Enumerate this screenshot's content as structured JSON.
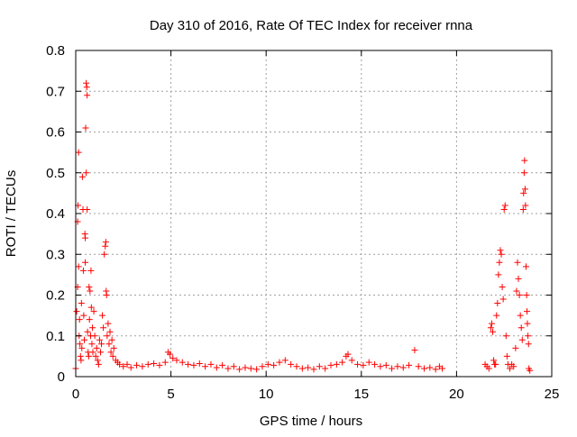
{
  "chart_data": {
    "type": "scatter",
    "title": "Day 310 of 2016, Rate Of TEC Index for receiver rnna",
    "xlabel": "GPS time / hours",
    "ylabel": "ROTI / TECUs",
    "xlim": [
      0,
      25
    ],
    "ylim": [
      0,
      0.8
    ],
    "xticks": [
      0,
      5,
      10,
      15,
      20,
      25
    ],
    "yticks": [
      0,
      0.1,
      0.2,
      0.3,
      0.4,
      0.5,
      0.6,
      0.7,
      0.8
    ],
    "xtick_labels": [
      "0",
      "5",
      "10",
      "15",
      "20",
      "25"
    ],
    "ytick_labels": [
      "0",
      "0.1",
      "0.2",
      "0.3",
      "0.4",
      "0.5",
      "0.6",
      "0.7",
      "0.8"
    ],
    "grid": true,
    "marker": "+",
    "series": [
      {
        "name": "ROTI",
        "color": "#ff0000",
        "points": [
          [
            0.0,
            0.02
          ],
          [
            0.05,
            0.16
          ],
          [
            0.1,
            0.22
          ],
          [
            0.1,
            0.38
          ],
          [
            0.12,
            0.42
          ],
          [
            0.15,
            0.55
          ],
          [
            0.15,
            0.27
          ],
          [
            0.18,
            0.1
          ],
          [
            0.2,
            0.14
          ],
          [
            0.22,
            0.08
          ],
          [
            0.25,
            0.05
          ],
          [
            0.28,
            0.04
          ],
          [
            0.3,
            0.18
          ],
          [
            0.32,
            0.07
          ],
          [
            0.35,
            0.49
          ],
          [
            0.38,
            0.41
          ],
          [
            0.4,
            0.26
          ],
          [
            0.42,
            0.15
          ],
          [
            0.45,
            0.09
          ],
          [
            0.48,
            0.35
          ],
          [
            0.5,
            0.34
          ],
          [
            0.5,
            0.28
          ],
          [
            0.52,
            0.61
          ],
          [
            0.55,
            0.5
          ],
          [
            0.55,
            0.72
          ],
          [
            0.58,
            0.71
          ],
          [
            0.6,
            0.69
          ],
          [
            0.6,
            0.41
          ],
          [
            0.62,
            0.11
          ],
          [
            0.65,
            0.06
          ],
          [
            0.68,
            0.05
          ],
          [
            0.7,
            0.22
          ],
          [
            0.72,
            0.14
          ],
          [
            0.75,
            0.21
          ],
          [
            0.78,
            0.1
          ],
          [
            0.8,
            0.26
          ],
          [
            0.82,
            0.17
          ],
          [
            0.85,
            0.08
          ],
          [
            0.88,
            0.12
          ],
          [
            0.9,
            0.06
          ],
          [
            0.95,
            0.16
          ],
          [
            1.0,
            0.1
          ],
          [
            1.05,
            0.05
          ],
          [
            1.1,
            0.07
          ],
          [
            1.15,
            0.04
          ],
          [
            1.2,
            0.03
          ],
          [
            1.25,
            0.09
          ],
          [
            1.3,
            0.06
          ],
          [
            1.35,
            0.08
          ],
          [
            1.4,
            0.15
          ],
          [
            1.45,
            0.12
          ],
          [
            1.5,
            0.3
          ],
          [
            1.55,
            0.32
          ],
          [
            1.58,
            0.33
          ],
          [
            1.6,
            0.21
          ],
          [
            1.62,
            0.2
          ],
          [
            1.65,
            0.1
          ],
          [
            1.7,
            0.13
          ],
          [
            1.75,
            0.08
          ],
          [
            1.8,
            0.11
          ],
          [
            1.85,
            0.06
          ],
          [
            1.9,
            0.09
          ],
          [
            1.95,
            0.05
          ],
          [
            2.0,
            0.07
          ],
          [
            2.1,
            0.04
          ],
          [
            2.2,
            0.035
          ],
          [
            2.3,
            0.03
          ],
          [
            2.5,
            0.025
          ],
          [
            2.7,
            0.03
          ],
          [
            2.9,
            0.022
          ],
          [
            3.2,
            0.028
          ],
          [
            3.5,
            0.025
          ],
          [
            3.8,
            0.03
          ],
          [
            4.1,
            0.032
          ],
          [
            4.4,
            0.028
          ],
          [
            4.7,
            0.035
          ],
          [
            4.85,
            0.06
          ],
          [
            4.95,
            0.055
          ],
          [
            5.1,
            0.045
          ],
          [
            5.3,
            0.04
          ],
          [
            5.6,
            0.035
          ],
          [
            5.9,
            0.03
          ],
          [
            6.2,
            0.028
          ],
          [
            6.5,
            0.032
          ],
          [
            6.8,
            0.025
          ],
          [
            7.1,
            0.03
          ],
          [
            7.4,
            0.022
          ],
          [
            7.7,
            0.028
          ],
          [
            8.0,
            0.02
          ],
          [
            8.3,
            0.025
          ],
          [
            8.6,
            0.018
          ],
          [
            8.9,
            0.022
          ],
          [
            9.2,
            0.02
          ],
          [
            9.5,
            0.018
          ],
          [
            9.8,
            0.025
          ],
          [
            10.1,
            0.03
          ],
          [
            10.4,
            0.028
          ],
          [
            10.7,
            0.035
          ],
          [
            11.0,
            0.04
          ],
          [
            11.3,
            0.03
          ],
          [
            11.6,
            0.025
          ],
          [
            11.9,
            0.02
          ],
          [
            12.2,
            0.022
          ],
          [
            12.5,
            0.018
          ],
          [
            12.8,
            0.025
          ],
          [
            13.1,
            0.02
          ],
          [
            13.4,
            0.028
          ],
          [
            13.7,
            0.03
          ],
          [
            14.0,
            0.035
          ],
          [
            14.2,
            0.05
          ],
          [
            14.3,
            0.055
          ],
          [
            14.5,
            0.04
          ],
          [
            14.8,
            0.03
          ],
          [
            15.1,
            0.028
          ],
          [
            15.4,
            0.035
          ],
          [
            15.7,
            0.03
          ],
          [
            16.0,
            0.025
          ],
          [
            16.3,
            0.028
          ],
          [
            16.6,
            0.02
          ],
          [
            16.9,
            0.025
          ],
          [
            17.2,
            0.022
          ],
          [
            17.5,
            0.028
          ],
          [
            17.8,
            0.065
          ],
          [
            18.0,
            0.025
          ],
          [
            18.3,
            0.02
          ],
          [
            18.6,
            0.022
          ],
          [
            18.9,
            0.018
          ],
          [
            19.1,
            0.025
          ],
          [
            19.25,
            0.02
          ],
          [
            21.5,
            0.03
          ],
          [
            21.6,
            0.025
          ],
          [
            21.7,
            0.02
          ],
          [
            21.8,
            0.12
          ],
          [
            21.85,
            0.13
          ],
          [
            21.9,
            0.11
          ],
          [
            21.95,
            0.04
          ],
          [
            22.0,
            0.03
          ],
          [
            22.05,
            0.03
          ],
          [
            22.1,
            0.15
          ],
          [
            22.15,
            0.18
          ],
          [
            22.2,
            0.25
          ],
          [
            22.25,
            0.28
          ],
          [
            22.3,
            0.31
          ],
          [
            22.35,
            0.3
          ],
          [
            22.4,
            0.22
          ],
          [
            22.45,
            0.19
          ],
          [
            22.5,
            0.41
          ],
          [
            22.55,
            0.42
          ],
          [
            22.6,
            0.1
          ],
          [
            22.65,
            0.05
          ],
          [
            22.7,
            0.03
          ],
          [
            22.8,
            0.02
          ],
          [
            22.9,
            0.03
          ],
          [
            23.0,
            0.025
          ],
          [
            23.1,
            0.07
          ],
          [
            23.15,
            0.21
          ],
          [
            23.2,
            0.28
          ],
          [
            23.25,
            0.24
          ],
          [
            23.3,
            0.2
          ],
          [
            23.35,
            0.15
          ],
          [
            23.4,
            0.12
          ],
          [
            23.45,
            0.09
          ],
          [
            23.5,
            0.41
          ],
          [
            23.52,
            0.45
          ],
          [
            23.55,
            0.5
          ],
          [
            23.57,
            0.53
          ],
          [
            23.6,
            0.46
          ],
          [
            23.62,
            0.42
          ],
          [
            23.65,
            0.27
          ],
          [
            23.68,
            0.2
          ],
          [
            23.7,
            0.16
          ],
          [
            23.72,
            0.13
          ],
          [
            23.75,
            0.1
          ],
          [
            23.78,
            0.08
          ],
          [
            23.8,
            0.02
          ],
          [
            23.85,
            0.015
          ]
        ]
      }
    ]
  }
}
